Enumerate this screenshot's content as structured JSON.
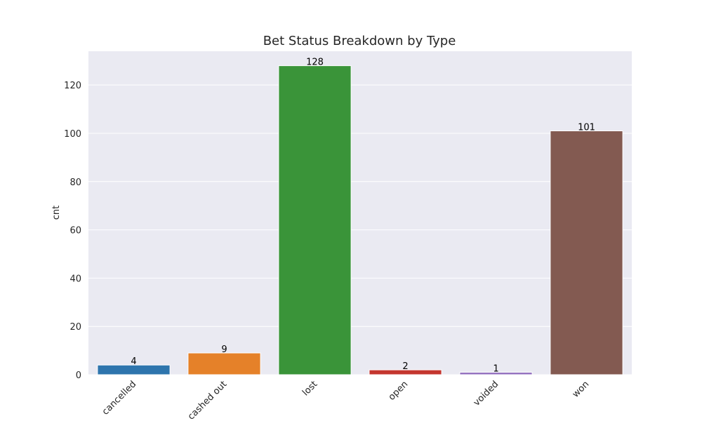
{
  "chart_data": {
    "type": "bar",
    "title": "Bet Status Breakdown by Type",
    "xlabel": "",
    "ylabel": "cnt",
    "categories": [
      "cancelled",
      "cashed out",
      "lost",
      "open",
      "voided",
      "won"
    ],
    "values": [
      4,
      9,
      128,
      2,
      1,
      101
    ],
    "data_labels": [
      "4",
      "9",
      "128",
      "2",
      "1",
      "101"
    ],
    "colors": [
      "#2e75ad",
      "#e58129",
      "#3a9439",
      "#c4362f",
      "#9370bf",
      "#835a51"
    ],
    "ylim": [
      0,
      134
    ],
    "yticks": [
      0,
      20,
      40,
      60,
      80,
      100,
      120
    ],
    "grid": true,
    "style": {
      "plot_background": "#eaeaf2",
      "grid_color": "#ffffff"
    }
  }
}
